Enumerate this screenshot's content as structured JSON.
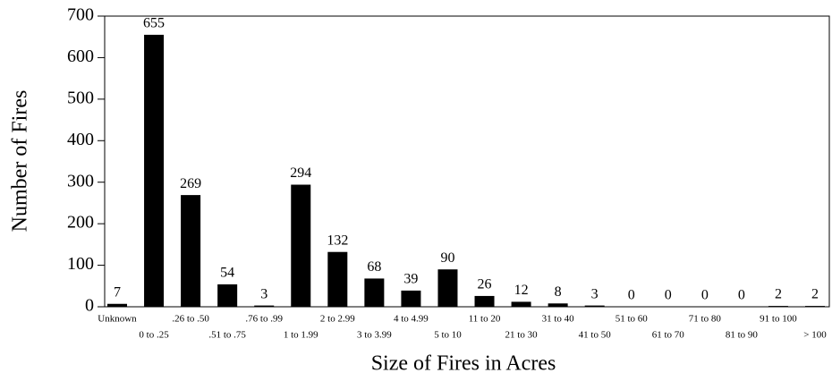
{
  "chart_data": {
    "type": "bar",
    "x_label": "Size of Fires in Acres",
    "y_label": "Number of Fires",
    "categories": [
      "Unknown",
      "0 to .25",
      ".26 to .50",
      ".51 to .75",
      ".76 to .99",
      "1 to 1.99",
      "2 to 2.99",
      "3 to 3.99",
      "4 to 4.99",
      "5 to 10",
      "11 to 20",
      "21 to 30",
      "31 to 40",
      "41 to 50",
      "51 to 60",
      "61 to 70",
      "71 to 80",
      "81 to 90",
      "91 to 100",
      "> 100"
    ],
    "values": [
      7,
      655,
      269,
      54,
      3,
      294,
      132,
      68,
      39,
      90,
      26,
      12,
      8,
      3,
      0,
      0,
      0,
      0,
      2,
      2
    ],
    "color": "#000000",
    "ylim": [
      0,
      700
    ],
    "yticks": [
      0,
      100,
      200,
      300,
      400,
      500,
      600,
      700
    ]
  }
}
